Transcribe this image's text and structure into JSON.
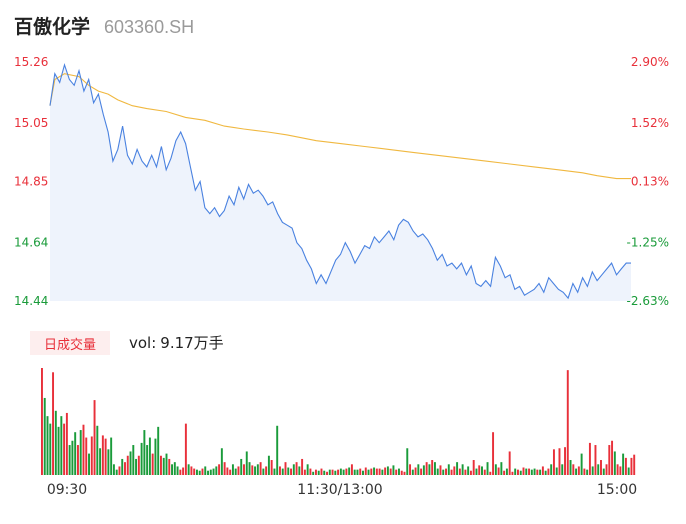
{
  "header": {
    "stock_name": "百傲化学",
    "stock_code": "603360.SH"
  },
  "volume_panel": {
    "badge_label": "日成交量",
    "volume_prefix": "vol:",
    "volume_value": "9.17万手"
  },
  "colors": {
    "up": "#e8303a",
    "down": "#1a9b3a",
    "neutral": "#888888",
    "price_line": "#4a82e0",
    "avg_line": "#f0b840",
    "area_fill": "#eef3fc"
  },
  "chart_data": [
    {
      "type": "line",
      "name": "intraday-price",
      "y_ticks_left": [
        "15.26",
        "15.05",
        "14.85",
        "14.64",
        "14.44"
      ],
      "y_ticks_right": [
        "2.90%",
        "1.52%",
        "0.13%",
        "-1.25%",
        "-2.63%"
      ],
      "y_tick_values": [
        15.26,
        15.05,
        14.85,
        14.64,
        14.44
      ],
      "ylim": [
        14.44,
        15.26
      ],
      "prev_close": 14.83,
      "x_tick_labels": [
        "09:30",
        "11:30/13:00",
        "15:00"
      ],
      "x_range": [
        0,
        240
      ],
      "price": [
        [
          0,
          15.11
        ],
        [
          2,
          15.22
        ],
        [
          4,
          15.19
        ],
        [
          6,
          15.25
        ],
        [
          8,
          15.2
        ],
        [
          10,
          15.18
        ],
        [
          12,
          15.23
        ],
        [
          14,
          15.16
        ],
        [
          16,
          15.2
        ],
        [
          18,
          15.12
        ],
        [
          20,
          15.15
        ],
        [
          22,
          15.08
        ],
        [
          24,
          15.02
        ],
        [
          26,
          14.92
        ],
        [
          28,
          14.96
        ],
        [
          30,
          15.04
        ],
        [
          32,
          14.94
        ],
        [
          34,
          14.91
        ],
        [
          36,
          14.96
        ],
        [
          38,
          14.92
        ],
        [
          40,
          14.9
        ],
        [
          42,
          14.94
        ],
        [
          44,
          14.9
        ],
        [
          46,
          14.97
        ],
        [
          48,
          14.89
        ],
        [
          50,
          14.93
        ],
        [
          52,
          14.99
        ],
        [
          54,
          15.02
        ],
        [
          56,
          14.98
        ],
        [
          58,
          14.9
        ],
        [
          60,
          14.82
        ],
        [
          62,
          14.85
        ],
        [
          64,
          14.76
        ],
        [
          66,
          14.74
        ],
        [
          68,
          14.76
        ],
        [
          70,
          14.73
        ],
        [
          72,
          14.75
        ],
        [
          74,
          14.8
        ],
        [
          76,
          14.77
        ],
        [
          78,
          14.83
        ],
        [
          80,
          14.79
        ],
        [
          82,
          14.84
        ],
        [
          84,
          14.81
        ],
        [
          86,
          14.82
        ],
        [
          88,
          14.8
        ],
        [
          90,
          14.77
        ],
        [
          92,
          14.78
        ],
        [
          94,
          14.74
        ],
        [
          96,
          14.71
        ],
        [
          98,
          14.7
        ],
        [
          100,
          14.69
        ],
        [
          102,
          14.64
        ],
        [
          104,
          14.62
        ],
        [
          106,
          14.58
        ],
        [
          108,
          14.55
        ],
        [
          110,
          14.5
        ],
        [
          112,
          14.53
        ],
        [
          114,
          14.5
        ],
        [
          116,
          14.54
        ],
        [
          118,
          14.58
        ],
        [
          120,
          14.6
        ],
        [
          122,
          14.64
        ],
        [
          124,
          14.61
        ],
        [
          126,
          14.57
        ],
        [
          128,
          14.6
        ],
        [
          130,
          14.63
        ],
        [
          132,
          14.62
        ],
        [
          134,
          14.66
        ],
        [
          136,
          14.64
        ],
        [
          138,
          14.66
        ],
        [
          140,
          14.68
        ],
        [
          142,
          14.65
        ],
        [
          144,
          14.7
        ],
        [
          146,
          14.72
        ],
        [
          148,
          14.71
        ],
        [
          150,
          14.68
        ],
        [
          152,
          14.66
        ],
        [
          154,
          14.67
        ],
        [
          156,
          14.65
        ],
        [
          158,
          14.62
        ],
        [
          160,
          14.58
        ],
        [
          162,
          14.6
        ],
        [
          164,
          14.56
        ],
        [
          166,
          14.57
        ],
        [
          168,
          14.55
        ],
        [
          170,
          14.57
        ],
        [
          172,
          14.53
        ],
        [
          174,
          14.56
        ],
        [
          176,
          14.5
        ],
        [
          178,
          14.49
        ],
        [
          180,
          14.51
        ],
        [
          182,
          14.49
        ],
        [
          184,
          14.59
        ],
        [
          186,
          14.56
        ],
        [
          188,
          14.52
        ],
        [
          190,
          14.53
        ],
        [
          192,
          14.48
        ],
        [
          194,
          14.49
        ],
        [
          196,
          14.46
        ],
        [
          198,
          14.47
        ],
        [
          200,
          14.48
        ],
        [
          202,
          14.5
        ],
        [
          204,
          14.47
        ],
        [
          206,
          14.52
        ],
        [
          208,
          14.5
        ],
        [
          210,
          14.48
        ],
        [
          212,
          14.47
        ],
        [
          214,
          14.45
        ],
        [
          216,
          14.5
        ],
        [
          218,
          14.47
        ],
        [
          220,
          14.52
        ],
        [
          222,
          14.49
        ],
        [
          224,
          14.54
        ],
        [
          226,
          14.51
        ],
        [
          228,
          14.53
        ],
        [
          230,
          14.55
        ],
        [
          232,
          14.57
        ],
        [
          234,
          14.53
        ],
        [
          236,
          14.55
        ],
        [
          238,
          14.57
        ],
        [
          240,
          14.57
        ]
      ],
      "avg_price": [
        [
          0,
          15.11
        ],
        [
          2,
          15.2
        ],
        [
          6,
          15.22
        ],
        [
          12,
          15.21
        ],
        [
          16,
          15.18
        ],
        [
          20,
          15.16
        ],
        [
          24,
          15.15
        ],
        [
          28,
          15.13
        ],
        [
          34,
          15.11
        ],
        [
          40,
          15.1
        ],
        [
          48,
          15.09
        ],
        [
          56,
          15.07
        ],
        [
          64,
          15.06
        ],
        [
          72,
          15.04
        ],
        [
          80,
          15.03
        ],
        [
          90,
          15.02
        ],
        [
          98,
          15.01
        ],
        [
          104,
          15.0
        ],
        [
          110,
          14.99
        ],
        [
          120,
          14.98
        ],
        [
          130,
          14.97
        ],
        [
          140,
          14.96
        ],
        [
          150,
          14.95
        ],
        [
          160,
          14.94
        ],
        [
          170,
          14.93
        ],
        [
          180,
          14.92
        ],
        [
          190,
          14.91
        ],
        [
          200,
          14.9
        ],
        [
          210,
          14.89
        ],
        [
          220,
          14.88
        ],
        [
          226,
          14.87
        ],
        [
          234,
          14.86
        ],
        [
          240,
          14.86
        ]
      ]
    },
    {
      "type": "bar",
      "name": "volume",
      "ylim": [
        0,
        100
      ],
      "values": [
        100,
        72,
        55,
        48,
        96,
        60,
        45,
        55,
        48,
        58,
        28,
        32,
        40,
        28,
        42,
        47,
        35,
        20,
        36,
        70,
        46,
        25,
        37,
        34,
        24,
        35,
        10,
        5,
        8,
        15,
        12,
        18,
        22,
        28,
        15,
        18,
        30,
        42,
        28,
        35,
        20,
        34,
        45,
        18,
        16,
        20,
        15,
        10,
        12,
        8,
        5,
        7,
        48,
        10,
        8,
        6,
        5,
        4,
        6,
        8,
        4,
        5,
        6,
        8,
        10,
        25,
        12,
        7,
        5,
        10,
        6,
        8,
        15,
        10,
        22,
        12,
        9,
        8,
        10,
        12,
        6,
        8,
        18,
        14,
        6,
        46,
        8,
        6,
        12,
        7,
        6,
        10,
        12,
        8,
        15,
        5,
        10,
        6,
        3,
        5,
        4,
        6,
        4,
        3,
        5,
        5,
        4,
        5,
        6,
        5,
        6,
        7,
        10,
        5,
        5,
        6,
        4,
        7,
        5,
        6,
        7,
        6,
        6,
        5,
        7,
        8,
        6,
        9,
        5,
        6,
        4,
        3,
        25,
        10,
        5,
        7,
        10,
        6,
        9,
        12,
        10,
        14,
        12,
        6,
        9,
        5,
        6,
        10,
        5,
        8,
        12,
        6,
        10,
        5,
        8,
        4,
        14,
        6,
        9,
        8,
        5,
        12,
        3,
        40,
        10,
        7,
        12,
        4,
        6,
        22,
        3,
        6,
        5,
        4,
        7,
        6,
        6,
        5,
        6,
        5,
        5,
        8,
        4,
        6,
        10,
        24,
        7,
        25,
        10,
        26,
        98,
        14,
        10,
        6,
        8,
        20,
        6,
        5,
        30,
        8,
        28,
        10,
        14,
        6,
        10,
        28,
        32,
        22,
        10,
        8,
        20,
        16,
        7,
        16,
        19
      ],
      "directions": [
        "u",
        "d",
        "d",
        "d",
        "u",
        "d",
        "d",
        "d",
        "u",
        "u",
        "d",
        "d",
        "d",
        "u",
        "d",
        "u",
        "u",
        "d",
        "u",
        "u",
        "d",
        "d",
        "u",
        "u",
        "d",
        "d",
        "d",
        "d",
        "u",
        "d",
        "u",
        "u",
        "d",
        "d",
        "d",
        "u",
        "d",
        "d",
        "d",
        "d",
        "u",
        "d",
        "d",
        "u",
        "d",
        "d",
        "u",
        "d",
        "d",
        "d",
        "u",
        "u",
        "u",
        "d",
        "u",
        "u",
        "d",
        "d",
        "u",
        "d",
        "d",
        "d",
        "d",
        "d",
        "u",
        "d",
        "u",
        "u",
        "u",
        "d",
        "d",
        "u",
        "d",
        "u",
        "d",
        "d",
        "u",
        "d",
        "d",
        "u",
        "d",
        "u",
        "d",
        "u",
        "d",
        "d",
        "u",
        "d",
        "u",
        "d",
        "u",
        "d",
        "u",
        "d",
        "u",
        "u",
        "d",
        "u",
        "d",
        "u",
        "d",
        "u",
        "d",
        "u",
        "d",
        "u",
        "d",
        "u",
        "d",
        "d",
        "u",
        "d",
        "u",
        "d",
        "d",
        "u",
        "d",
        "u",
        "d",
        "u",
        "d",
        "u",
        "u",
        "d",
        "u",
        "d",
        "u",
        "d",
        "u",
        "d",
        "u",
        "u",
        "d",
        "u",
        "d",
        "u",
        "d",
        "u",
        "d",
        "u",
        "d",
        "u",
        "d",
        "d",
        "u",
        "d",
        "u",
        "d",
        "u",
        "u",
        "d",
        "u",
        "d",
        "u",
        "d",
        "u",
        "u",
        "d",
        "u",
        "d",
        "u",
        "d",
        "u",
        "u",
        "d",
        "u",
        "d",
        "u",
        "d",
        "u",
        "u",
        "d",
        "u",
        "d",
        "u",
        "d",
        "u",
        "d",
        "d",
        "u",
        "d",
        "u",
        "d",
        "u",
        "d",
        "u",
        "d",
        "u",
        "d",
        "u",
        "u",
        "d",
        "u",
        "d",
        "u",
        "d",
        "u",
        "d",
        "u",
        "d",
        "u",
        "d",
        "u",
        "d",
        "u",
        "u",
        "u",
        "d",
        "u",
        "u",
        "d",
        "u",
        "d",
        "u",
        "u"
      ]
    }
  ]
}
